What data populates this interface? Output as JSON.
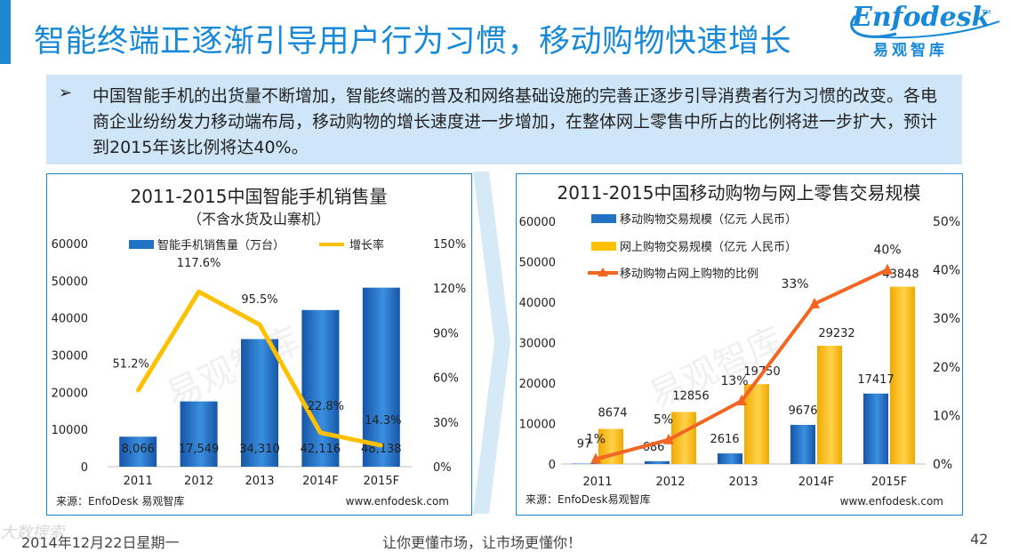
{
  "header": {
    "title": "智能终端正逐渐引导用户行为习惯，移动购物快速增长",
    "logo_text": "Enfodesk",
    "logo_tm": "TM",
    "logo_sub": "易观智库"
  },
  "summary": {
    "bullet": "➢",
    "text": "中国智能手机的出货量不断增加，智能终端的普及和网络基础设施的完善正逐步引导消费者行为习惯的改变。各电商企业纷纷发力移动端布局，移动购物的增长速度进一步增加，在整体网上零售中所占的比例将进一步扩大，预计到2015年该比例将达40%。"
  },
  "colors": {
    "accent": "#1789d8",
    "bar_blue": "#1f72c4",
    "bar_orange": "#ffc000",
    "line_yellow": "#ffc000",
    "line_orange": "#f26522"
  },
  "chart_data": [
    {
      "type": "bar",
      "title": "2011-2015中国智能手机销售量",
      "subtitle": "（不含水货及山寨机）",
      "categories": [
        "2011",
        "2012",
        "2013",
        "2014F",
        "2015F"
      ],
      "series": [
        {
          "name": "智能手机销售量（万台）",
          "type": "bar",
          "axis": "left",
          "values": [
            8066,
            17549,
            34310,
            42116,
            48138
          ],
          "labels": [
            "8,066",
            "17,549",
            "34,310",
            "42,116",
            "48,138"
          ]
        },
        {
          "name": "增长率",
          "type": "line",
          "axis": "right",
          "values": [
            51.2,
            117.6,
            95.5,
            22.8,
            14.3
          ],
          "labels": [
            "51.2%",
            "117.6%",
            "95.5%",
            "22.8%",
            "14.3%"
          ]
        }
      ],
      "ylim": [
        0,
        60000
      ],
      "yticks": [
        0,
        10000,
        20000,
        30000,
        40000,
        50000,
        60000
      ],
      "y2lim": [
        0,
        150
      ],
      "y2ticks": [
        "0%",
        "30%",
        "60%",
        "90%",
        "120%",
        "150%"
      ],
      "source": "来源：EnfoDesk 易观智库",
      "site": "www.enfodesk.com",
      "watermark": "易观智库"
    },
    {
      "type": "bar",
      "title": "2011-2015中国移动购物与网上零售交易规模",
      "categories": [
        "2011",
        "2012",
        "2013",
        "2014F",
        "2015F"
      ],
      "series": [
        {
          "name": "移动购物交易规模（亿元 人民币）",
          "type": "bar",
          "axis": "left",
          "values": [
            97,
            686,
            2616,
            9676,
            17417
          ]
        },
        {
          "name": "网上购物交易规模（亿元 人民币）",
          "type": "bar",
          "axis": "left",
          "values": [
            8674,
            12856,
            19750,
            29232,
            43848
          ]
        },
        {
          "name": "移动购物占网上购物的比例",
          "type": "line",
          "axis": "right",
          "values": [
            1,
            5,
            13,
            33,
            40
          ],
          "labels": [
            "1%",
            "5%",
            "13%",
            "33%",
            "40%"
          ]
        }
      ],
      "ylim": [
        0,
        60000
      ],
      "yticks": [
        0,
        10000,
        20000,
        30000,
        40000,
        50000,
        60000
      ],
      "y2lim": [
        0,
        50
      ],
      "y2ticks": [
        "0%",
        "10%",
        "20%",
        "30%",
        "40%",
        "50%"
      ],
      "source": "来源：EnfoDesk易观智库",
      "site": "www.enfodesk.com",
      "watermark": "易观智库"
    }
  ],
  "footer": {
    "date": "2014年12月22日星期一",
    "slogan": "让你更懂市场，让市场更懂你！",
    "page": "42",
    "corner_mark": "大数搜索"
  }
}
